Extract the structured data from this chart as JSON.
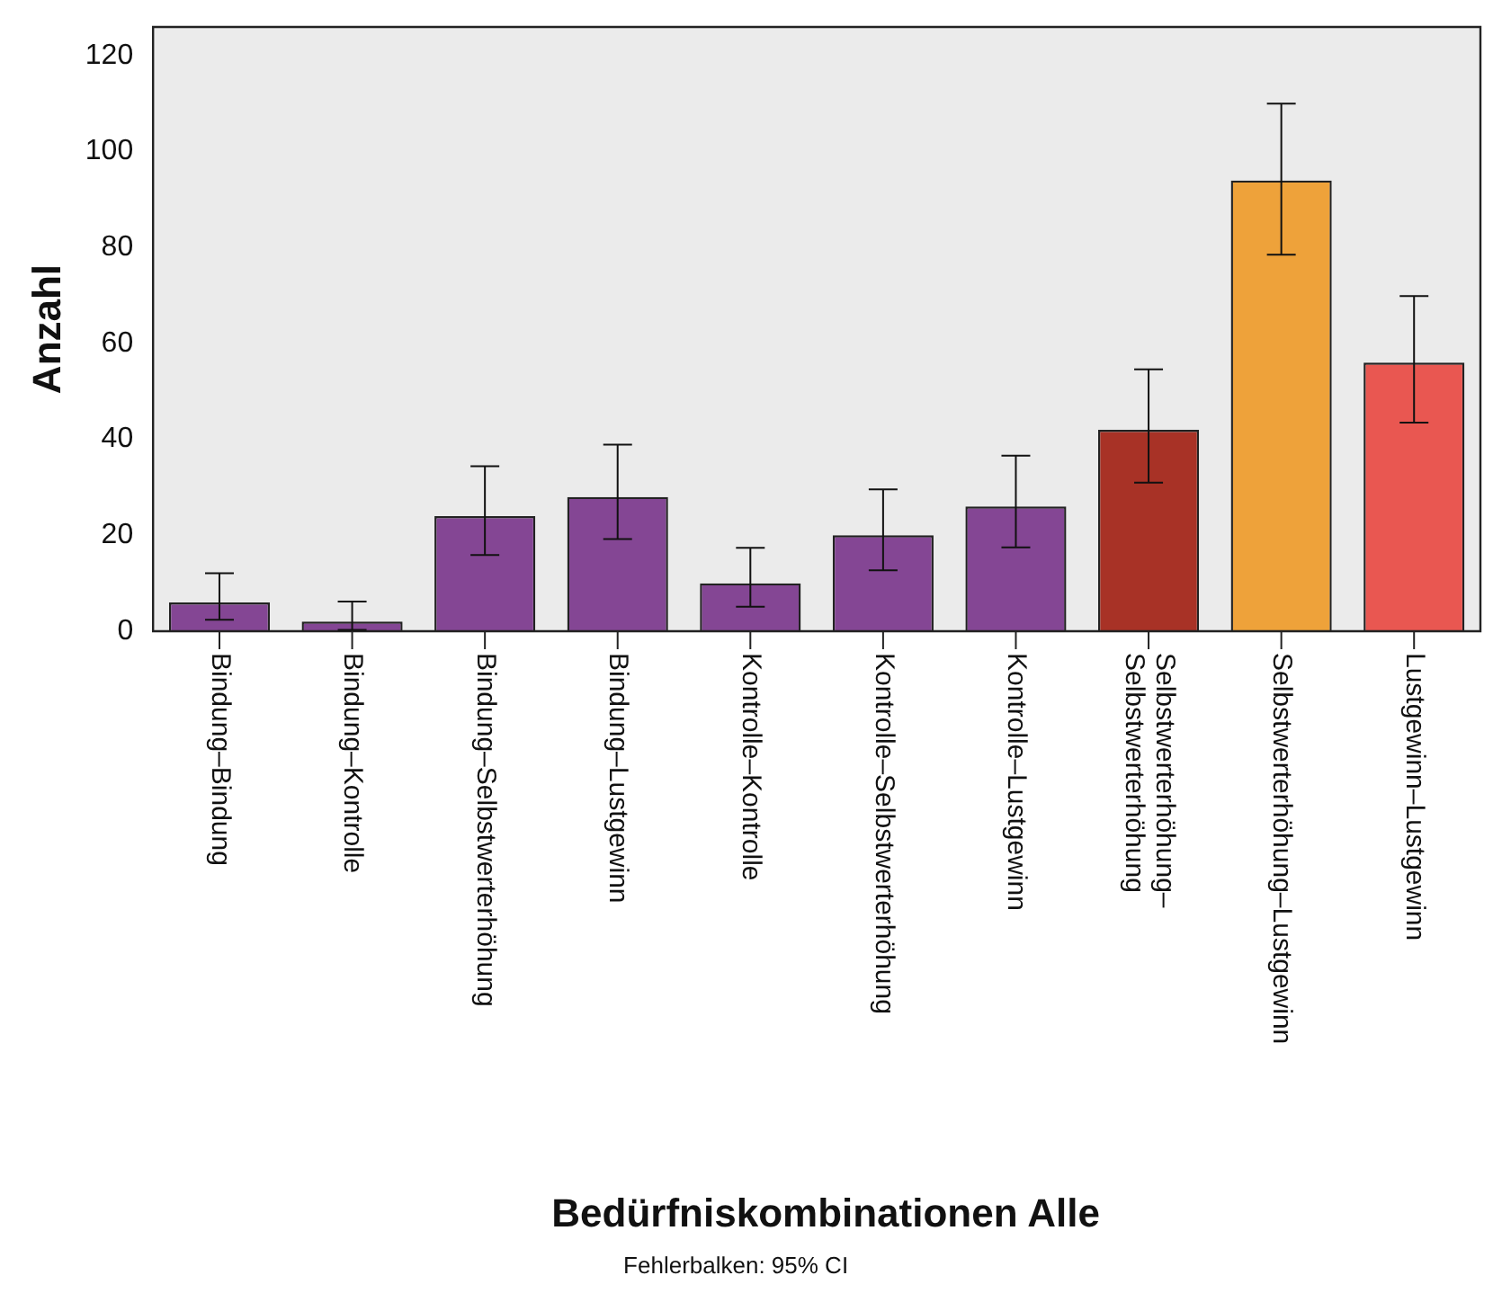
{
  "chart_data": {
    "type": "bar",
    "xlabel": "Bedürfniskombinationen Alle",
    "ylabel": "Anzahl",
    "annotations": [
      "Fehlerbalken: 95% CI"
    ],
    "categories": [
      "Bindung–Bindung",
      "Bindung–Kontrolle",
      "Bindung–Selbstwerterhöhung",
      "Bindung–Lustgewinn",
      "Kontrolle–Kontrolle",
      "Kontrolle–Selbstwerterhöhung",
      "Kontrolle–Lustgewinn",
      "Selbstwerterhöhung–\nSelbstwerterhöhung",
      "Selbstwerterhöhung–Lustgewinn",
      "Lustgewinn–Lustgewinn"
    ],
    "values": [
      6,
      2,
      24,
      28,
      10,
      20,
      26,
      42,
      94,
      56
    ],
    "colors": [
      "#844694",
      "#844694",
      "#844694",
      "#844694",
      "#844694",
      "#844694",
      "#844694",
      "#a83226",
      "#eea23a",
      "#e95751"
    ],
    "errors": [
      [
        2.4,
        12.1
      ],
      [
        0.3,
        6.2
      ],
      [
        15.9,
        34.4
      ],
      [
        19.2,
        38.9
      ],
      [
        5.1,
        17.4
      ],
      [
        12.7,
        29.6
      ],
      [
        17.5,
        36.6
      ],
      [
        31,
        54.6
      ],
      [
        78.5,
        110
      ],
      [
        43.5,
        69.9
      ]
    ],
    "ylim": [
      0,
      126
    ],
    "yticks": [
      0,
      20,
      40,
      60,
      80,
      100,
      120
    ],
    "grid": false,
    "legend": false
  }
}
